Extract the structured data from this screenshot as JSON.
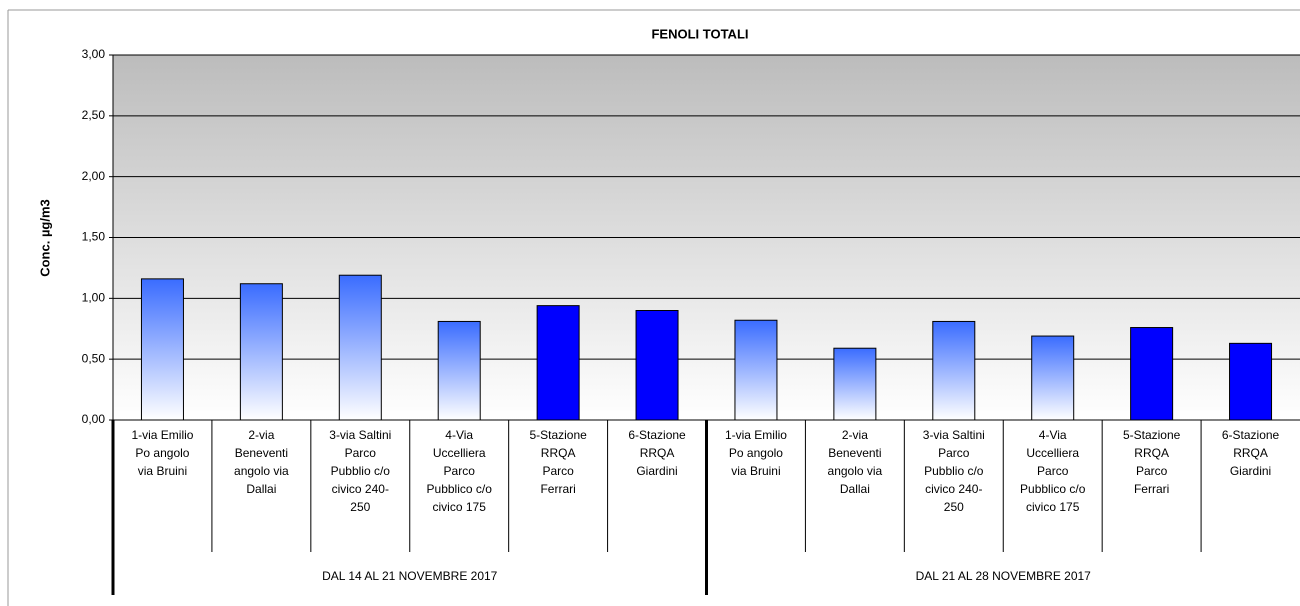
{
  "chart_data": {
    "type": "bar",
    "title": "FENOLI TOTALI",
    "y_label": "Conc. µg/m3",
    "categories": [
      "1-via Emilio\nPo angolo\nvia Bruini",
      "2-via\nBeneventi\nangolo via\nDallai",
      "3-via Saltini\nParco\nPubblio c/o\ncivico 240-\n250",
      "4-Via\nUccelliera\nParco\nPubblico c/o\ncivico 175",
      "5-Stazione\nRRQA\nParco\nFerrari",
      "6-Stazione\nRRQA\nGiardini",
      "1-via Emilio\nPo angolo\nvia Bruini",
      "2-via\nBeneventi\nangolo via\nDallai",
      "3-via Saltini\nParco\nPubblio c/o\ncivico 240-\n250",
      "4-Via\nUccelliera\nParco\nPubblico c/o\ncivico 175",
      "5-Stazione\nRRQA\nParco\nFerrari",
      "6-Stazione\nRRQA\nGiardini"
    ],
    "group_labels": [
      "DAL 14 AL 21 NOVEMBRE 2017",
      "DAL 21 AL 28 NOVEMBRE 2017"
    ],
    "values": [
      1.16,
      1.12,
      1.19,
      0.81,
      0.94,
      0.9,
      0.82,
      0.59,
      0.81,
      0.69,
      0.76,
      0.63
    ],
    "color": "#0000ff",
    "gradient": [
      true,
      true,
      true,
      true,
      false,
      false,
      true,
      true,
      true,
      true,
      false,
      false
    ],
    "ylim": [
      0,
      3
    ],
    "yticks": [
      {
        "value": 0,
        "label": "0,00"
      },
      {
        "value": 0.5,
        "label": "0,50"
      },
      {
        "value": 1,
        "label": "1,00"
      },
      {
        "value": 1.5,
        "label": "1,50"
      },
      {
        "value": 2,
        "label": "2,00"
      },
      {
        "value": 2.5,
        "label": "2,50"
      },
      {
        "value": 3,
        "label": "3,00"
      }
    ],
    "grid": true
  }
}
